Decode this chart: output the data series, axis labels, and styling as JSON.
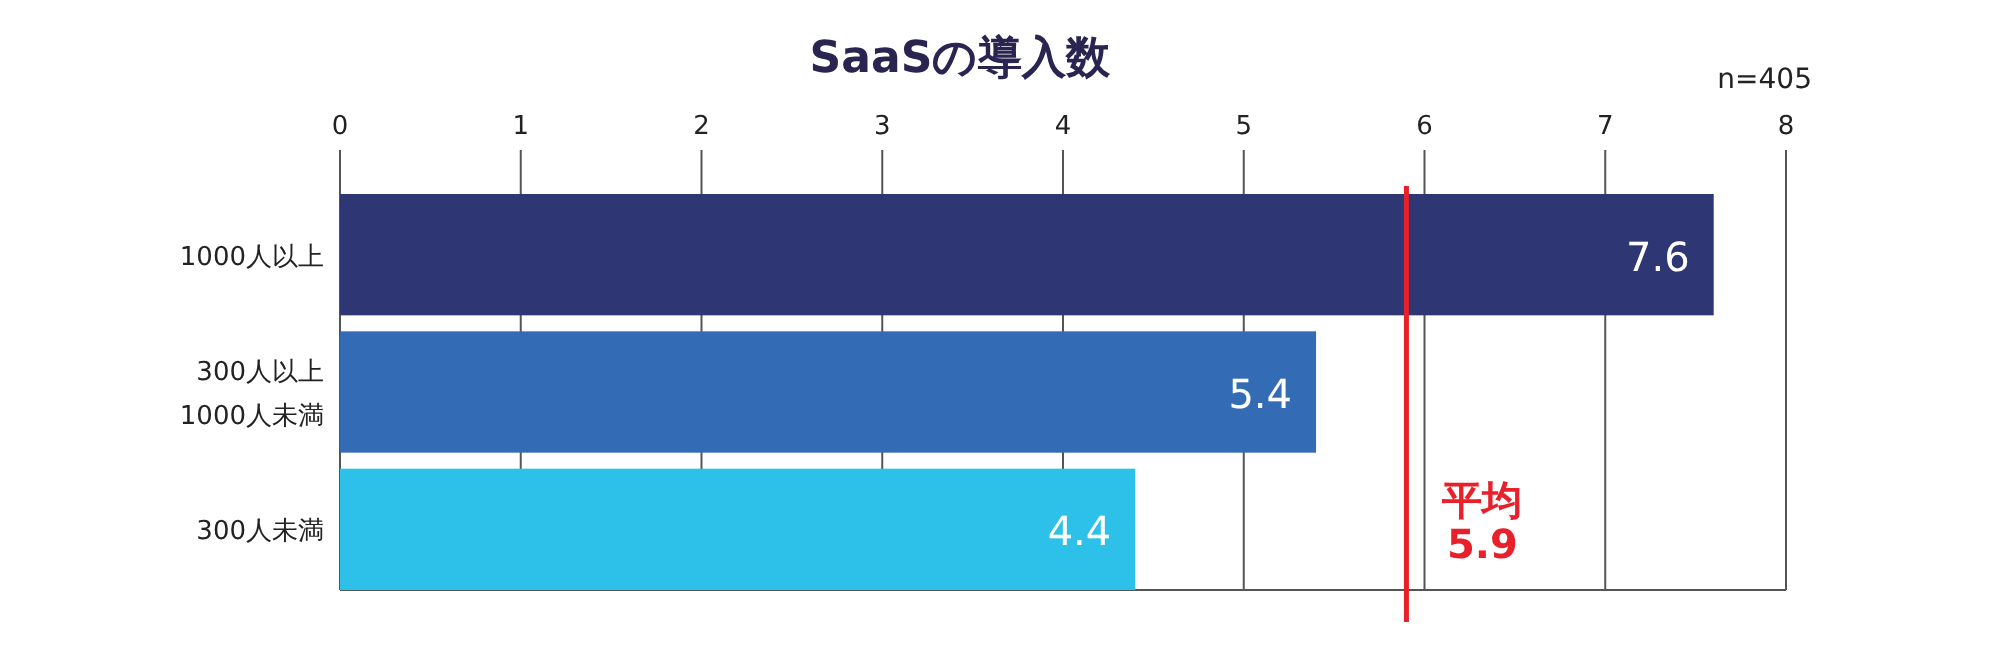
{
  "chart_data": {
    "type": "bar",
    "orientation": "horizontal",
    "title": "SaaSの導入数",
    "categories": [
      "1000人以上",
      "300人以上\n1000人未満",
      "300人未満"
    ],
    "values": [
      7.6,
      5.4,
      4.4
    ],
    "colors": [
      "#2e3674",
      "#336bb5",
      "#2dc1ea"
    ],
    "xlim": [
      0,
      8
    ],
    "xticks": [
      0,
      1,
      2,
      3,
      4,
      5,
      6,
      7,
      8
    ],
    "grid": "x",
    "data_labels": true,
    "ref_lines": [
      {
        "axis": "x",
        "value": 5.9,
        "label": "平均\n5.9",
        "color": "#e8202a"
      }
    ],
    "annotations": [
      "n=405"
    ]
  }
}
